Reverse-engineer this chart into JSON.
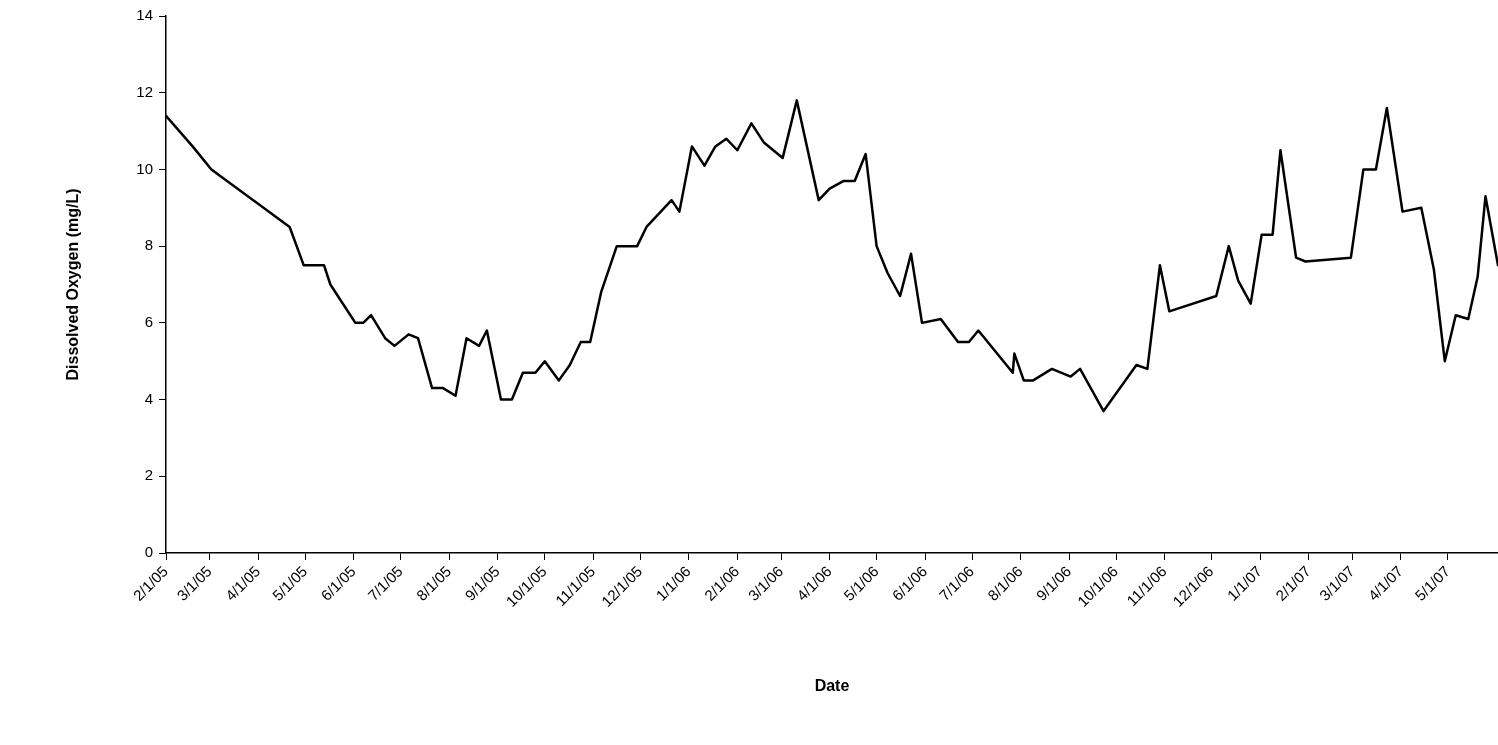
{
  "chart_data": {
    "type": "line",
    "xlabel": "Date",
    "ylabel": "Dissolved Oxygen (mg/L)",
    "color": "#000000",
    "x": [
      "2005-02-01",
      "2005-02-18",
      "2005-03-02",
      "2005-03-12",
      "2005-04-21",
      "2005-04-30",
      "2005-05-13",
      "2005-05-17",
      "2005-06-02",
      "2005-06-07",
      "2005-06-12",
      "2005-06-21",
      "2005-06-27",
      "2005-07-06",
      "2005-07-12",
      "2005-07-21",
      "2005-07-28",
      "2005-08-05",
      "2005-08-12",
      "2005-08-20",
      "2005-08-25",
      "2005-09-03",
      "2005-09-10",
      "2005-09-17",
      "2005-09-25",
      "2005-10-01",
      "2005-10-10",
      "2005-10-17",
      "2005-10-24",
      "2005-10-30",
      "2005-11-06",
      "2005-11-16",
      "2005-11-29",
      "2005-12-05",
      "2005-12-21",
      "2005-12-26",
      "2006-01-03",
      "2006-01-11",
      "2006-01-18",
      "2006-01-25",
      "2006-02-01",
      "2006-02-10",
      "2006-02-18",
      "2006-03-02",
      "2006-03-11",
      "2006-03-25",
      "2006-04-01",
      "2006-04-10",
      "2006-04-17",
      "2006-04-24",
      "2006-05-01",
      "2006-05-08",
      "2006-05-16",
      "2006-05-23",
      "2006-05-30",
      "2006-06-11",
      "2006-06-22",
      "2006-06-29",
      "2006-07-05",
      "2006-07-27",
      "2006-07-28",
      "2006-08-03",
      "2006-08-09",
      "2006-08-21",
      "2006-09-02",
      "2006-09-08",
      "2006-09-23",
      "2006-10-14",
      "2006-10-21",
      "2006-10-29",
      "2006-11-04",
      "2006-12-04",
      "2006-12-12",
      "2006-12-18",
      "2006-12-26",
      "2007-01-02",
      "2007-01-09",
      "2007-01-14",
      "2007-01-24",
      "2007-01-30",
      "2007-02-28",
      "2007-03-08",
      "2007-03-16",
      "2007-03-23",
      "2007-04-02",
      "2007-04-14",
      "2007-04-22",
      "2007-04-29",
      "2007-05-06",
      "2007-05-14",
      "2007-05-20",
      "2007-05-25",
      "2007-06-02"
    ],
    "values": [
      11.4,
      10.6,
      10.0,
      9.7,
      8.5,
      7.5,
      7.5,
      7.0,
      6.0,
      6.0,
      6.2,
      5.6,
      5.4,
      5.7,
      5.6,
      4.3,
      4.3,
      4.1,
      5.6,
      5.4,
      5.8,
      4.0,
      4.0,
      4.7,
      4.7,
      5.0,
      4.5,
      4.9,
      5.5,
      5.5,
      6.8,
      8.0,
      8.0,
      8.5,
      9.2,
      8.9,
      10.6,
      10.1,
      10.6,
      10.8,
      10.5,
      11.2,
      10.7,
      10.3,
      11.8,
      9.2,
      9.5,
      9.7,
      9.7,
      10.4,
      8.0,
      7.3,
      6.7,
      7.8,
      6.0,
      6.1,
      5.5,
      5.5,
      5.8,
      4.7,
      5.2,
      4.5,
      4.5,
      4.8,
      4.6,
      4.8,
      3.7,
      4.9,
      4.8,
      7.5,
      6.3,
      6.7,
      8.0,
      7.1,
      6.5,
      8.3,
      8.3,
      10.5,
      7.7,
      7.6,
      7.7,
      10.0,
      10.0,
      11.6,
      8.9,
      9.0,
      7.4,
      5.0,
      6.2,
      6.1,
      7.2,
      9.3,
      7.5
    ],
    "xlim": [
      "2005-02-01",
      "2007-06-02"
    ],
    "ylim": [
      0,
      14
    ],
    "yticks": [
      0,
      2,
      4,
      6,
      8,
      10,
      12,
      14
    ],
    "xticks": [
      {
        "value": "2005-02-01",
        "label": "2/1/05"
      },
      {
        "value": "2005-03-01",
        "label": "3/1/05"
      },
      {
        "value": "2005-04-01",
        "label": "4/1/05"
      },
      {
        "value": "2005-05-01",
        "label": "5/1/05"
      },
      {
        "value": "2005-06-01",
        "label": "6/1/05"
      },
      {
        "value": "2005-07-01",
        "label": "7/1/05"
      },
      {
        "value": "2005-08-01",
        "label": "8/1/05"
      },
      {
        "value": "2005-09-01",
        "label": "9/1/05"
      },
      {
        "value": "2005-10-01",
        "label": "10/1/05"
      },
      {
        "value": "2005-11-01",
        "label": "11/1/05"
      },
      {
        "value": "2005-12-01",
        "label": "12/1/05"
      },
      {
        "value": "2006-01-01",
        "label": "1/1/06"
      },
      {
        "value": "2006-02-01",
        "label": "2/1/06"
      },
      {
        "value": "2006-03-01",
        "label": "3/1/06"
      },
      {
        "value": "2006-04-01",
        "label": "4/1/06"
      },
      {
        "value": "2006-05-01",
        "label": "5/1/06"
      },
      {
        "value": "2006-06-01",
        "label": "6/1/06"
      },
      {
        "value": "2006-07-01",
        "label": "7/1/06"
      },
      {
        "value": "2006-08-01",
        "label": "8/1/06"
      },
      {
        "value": "2006-09-01",
        "label": "9/1/06"
      },
      {
        "value": "2006-10-01",
        "label": "10/1/06"
      },
      {
        "value": "2006-11-01",
        "label": "11/1/06"
      },
      {
        "value": "2006-12-01",
        "label": "12/1/06"
      },
      {
        "value": "2007-01-01",
        "label": "1/1/07"
      },
      {
        "value": "2007-02-01",
        "label": "2/1/07"
      },
      {
        "value": "2007-03-01",
        "label": "3/1/07"
      },
      {
        "value": "2007-04-01",
        "label": "4/1/07"
      },
      {
        "value": "2007-05-01",
        "label": "5/1/07"
      }
    ]
  }
}
